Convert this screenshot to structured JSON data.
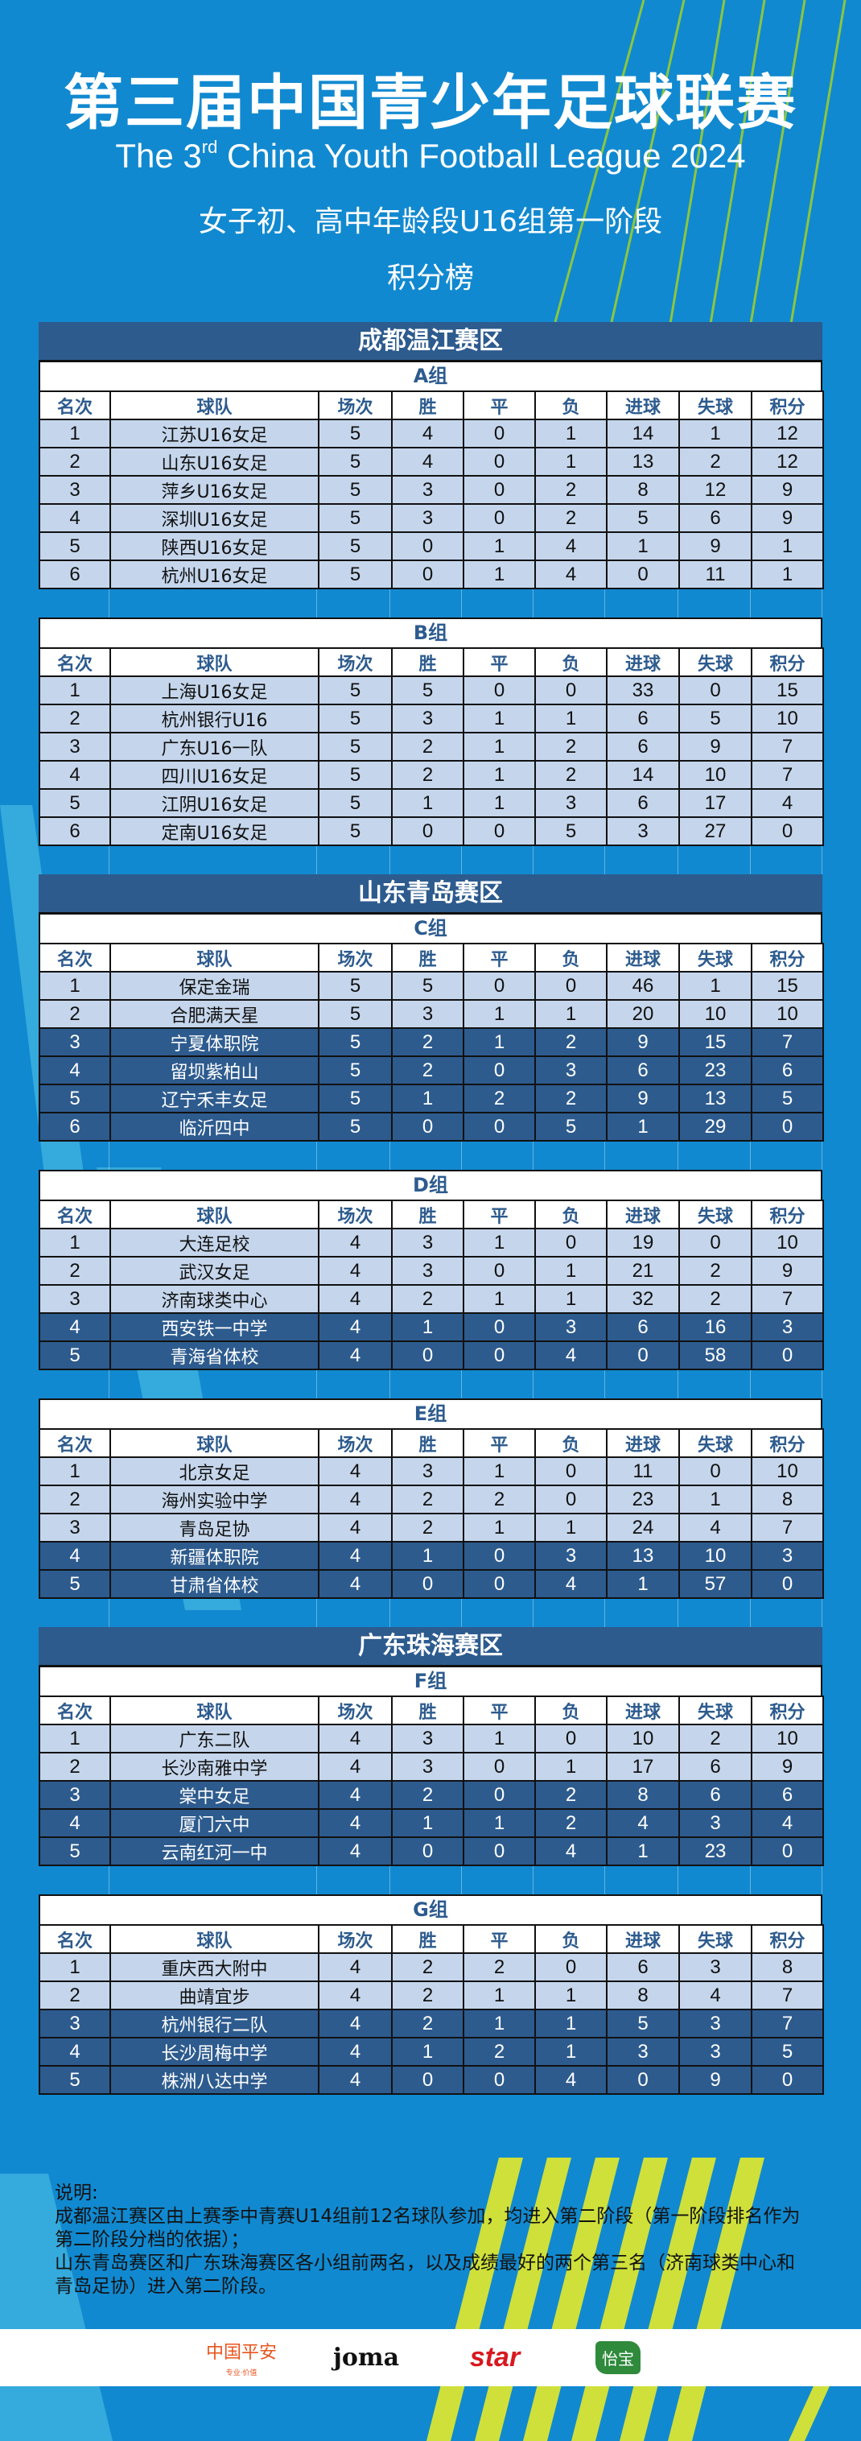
{
  "header": {
    "title": "第三届中国青少年足球联赛",
    "subtitle_en_prefix": "The 3",
    "subtitle_en_sup": "rd",
    "subtitle_en_suffix": " China Youth Football League 2024",
    "subtitle_cn": "女子初、高中年龄段U16组第一阶段",
    "board_title": "积分榜"
  },
  "columns": [
    "名次",
    "球队",
    "场次",
    "胜",
    "平",
    "负",
    "进球",
    "失球",
    "积分"
  ],
  "colors": {
    "background": "#1189d0",
    "region_header": "#2d5b8e",
    "qualified_row": "#c5d6ec",
    "other_row": "#2d5b8e",
    "stripe_accent": "#cfe03a"
  },
  "sections": [
    {
      "region": "成都温江赛区",
      "group": "A组",
      "rows": [
        {
          "cells": [
            "1",
            "江苏U16女足",
            "5",
            "4",
            "0",
            "1",
            "14",
            "1",
            "12"
          ],
          "qualified": true
        },
        {
          "cells": [
            "2",
            "山东U16女足",
            "5",
            "4",
            "0",
            "1",
            "13",
            "2",
            "12"
          ],
          "qualified": true
        },
        {
          "cells": [
            "3",
            "萍乡U16女足",
            "5",
            "3",
            "0",
            "2",
            "8",
            "12",
            "9"
          ],
          "qualified": true
        },
        {
          "cells": [
            "4",
            "深圳U16女足",
            "5",
            "3",
            "0",
            "2",
            "5",
            "6",
            "9"
          ],
          "qualified": true
        },
        {
          "cells": [
            "5",
            "陕西U16女足",
            "5",
            "0",
            "1",
            "4",
            "1",
            "9",
            "1"
          ],
          "qualified": true
        },
        {
          "cells": [
            "6",
            "杭州U16女足",
            "5",
            "0",
            "1",
            "4",
            "0",
            "11",
            "1"
          ],
          "qualified": true
        }
      ]
    },
    {
      "region": "",
      "group": "B组",
      "rows": [
        {
          "cells": [
            "1",
            "上海U16女足",
            "5",
            "5",
            "0",
            "0",
            "33",
            "0",
            "15"
          ],
          "qualified": true
        },
        {
          "cells": [
            "2",
            "杭州银行U16",
            "5",
            "3",
            "1",
            "1",
            "6",
            "5",
            "10"
          ],
          "qualified": true
        },
        {
          "cells": [
            "3",
            "广东U16一队",
            "5",
            "2",
            "1",
            "2",
            "6",
            "9",
            "7"
          ],
          "qualified": true
        },
        {
          "cells": [
            "4",
            "四川U16女足",
            "5",
            "2",
            "1",
            "2",
            "14",
            "10",
            "7"
          ],
          "qualified": true
        },
        {
          "cells": [
            "5",
            "江阴U16女足",
            "5",
            "1",
            "1",
            "3",
            "6",
            "17",
            "4"
          ],
          "qualified": true
        },
        {
          "cells": [
            "6",
            "定南U16女足",
            "5",
            "0",
            "0",
            "5",
            "3",
            "27",
            "0"
          ],
          "qualified": true
        }
      ]
    },
    {
      "region": "山东青岛赛区",
      "group": "C组",
      "rows": [
        {
          "cells": [
            "1",
            "保定金瑞",
            "5",
            "5",
            "0",
            "0",
            "46",
            "1",
            "15"
          ],
          "qualified": true
        },
        {
          "cells": [
            "2",
            "合肥满天星",
            "5",
            "3",
            "1",
            "1",
            "20",
            "10",
            "10"
          ],
          "qualified": true
        },
        {
          "cells": [
            "3",
            "宁夏体职院",
            "5",
            "2",
            "1",
            "2",
            "9",
            "15",
            "7"
          ],
          "qualified": false
        },
        {
          "cells": [
            "4",
            "留坝紫柏山",
            "5",
            "2",
            "0",
            "3",
            "6",
            "23",
            "6"
          ],
          "qualified": false
        },
        {
          "cells": [
            "5",
            "辽宁禾丰女足",
            "5",
            "1",
            "2",
            "2",
            "9",
            "13",
            "5"
          ],
          "qualified": false
        },
        {
          "cells": [
            "6",
            "临沂四中",
            "5",
            "0",
            "0",
            "5",
            "1",
            "29",
            "0"
          ],
          "qualified": false
        }
      ]
    },
    {
      "region": "",
      "group": "D组",
      "rows": [
        {
          "cells": [
            "1",
            "大连足校",
            "4",
            "3",
            "1",
            "0",
            "19",
            "0",
            "10"
          ],
          "qualified": true
        },
        {
          "cells": [
            "2",
            "武汉女足",
            "4",
            "3",
            "0",
            "1",
            "21",
            "2",
            "9"
          ],
          "qualified": true
        },
        {
          "cells": [
            "3",
            "济南球类中心",
            "4",
            "2",
            "1",
            "1",
            "32",
            "2",
            "7"
          ],
          "qualified": true
        },
        {
          "cells": [
            "4",
            "西安铁一中学",
            "4",
            "1",
            "0",
            "3",
            "6",
            "16",
            "3"
          ],
          "qualified": false
        },
        {
          "cells": [
            "5",
            "青海省体校",
            "4",
            "0",
            "0",
            "4",
            "0",
            "58",
            "0"
          ],
          "qualified": false
        }
      ]
    },
    {
      "region": "",
      "group": "E组",
      "rows": [
        {
          "cells": [
            "1",
            "北京女足",
            "4",
            "3",
            "1",
            "0",
            "11",
            "0",
            "10"
          ],
          "qualified": true
        },
        {
          "cells": [
            "2",
            "海州实验中学",
            "4",
            "2",
            "2",
            "0",
            "23",
            "1",
            "8"
          ],
          "qualified": true
        },
        {
          "cells": [
            "3",
            "青岛足协",
            "4",
            "2",
            "1",
            "1",
            "24",
            "4",
            "7"
          ],
          "qualified": true
        },
        {
          "cells": [
            "4",
            "新疆体职院",
            "4",
            "1",
            "0",
            "3",
            "13",
            "10",
            "3"
          ],
          "qualified": false
        },
        {
          "cells": [
            "5",
            "甘肃省体校",
            "4",
            "0",
            "0",
            "4",
            "1",
            "57",
            "0"
          ],
          "qualified": false
        }
      ]
    },
    {
      "region": "广东珠海赛区",
      "group": "F组",
      "rows": [
        {
          "cells": [
            "1",
            "广东二队",
            "4",
            "3",
            "1",
            "0",
            "10",
            "2",
            "10"
          ],
          "qualified": true
        },
        {
          "cells": [
            "2",
            "长沙南雅中学",
            "4",
            "3",
            "0",
            "1",
            "17",
            "6",
            "9"
          ],
          "qualified": true
        },
        {
          "cells": [
            "3",
            "棠中女足",
            "4",
            "2",
            "0",
            "2",
            "8",
            "6",
            "6"
          ],
          "qualified": false
        },
        {
          "cells": [
            "4",
            "厦门六中",
            "4",
            "1",
            "1",
            "2",
            "4",
            "3",
            "4"
          ],
          "qualified": false
        },
        {
          "cells": [
            "5",
            "云南红河一中",
            "4",
            "0",
            "0",
            "4",
            "1",
            "23",
            "0"
          ],
          "qualified": false
        }
      ]
    },
    {
      "region": "",
      "group": "G组",
      "rows": [
        {
          "cells": [
            "1",
            "重庆西大附中",
            "4",
            "2",
            "2",
            "0",
            "6",
            "3",
            "8"
          ],
          "qualified": true
        },
        {
          "cells": [
            "2",
            "曲靖宜步",
            "4",
            "2",
            "1",
            "1",
            "8",
            "4",
            "7"
          ],
          "qualified": true
        },
        {
          "cells": [
            "3",
            "杭州银行二队",
            "4",
            "2",
            "1",
            "1",
            "5",
            "3",
            "7"
          ],
          "qualified": false
        },
        {
          "cells": [
            "4",
            "长沙周梅中学",
            "4",
            "1",
            "2",
            "1",
            "3",
            "3",
            "5"
          ],
          "qualified": false
        },
        {
          "cells": [
            "5",
            "株洲八达中学",
            "4",
            "0",
            "0",
            "4",
            "0",
            "9",
            "0"
          ],
          "qualified": false
        }
      ]
    }
  ],
  "notes": {
    "label": "说明:",
    "lines": [
      "成都温江赛区由上赛季中青赛U14组前12名球队参加，均进入第二阶段（第一阶段排名作为第二阶段分档的依据）；",
      "山东青岛赛区和广东珠海赛区各小组前两名，以及成绩最好的两个第三名（济南球类中心和青岛足协）进入第二阶段。"
    ]
  },
  "sponsors": {
    "pingan": "中国平安",
    "pingan_tagline": "专业·价值",
    "joma": "joma",
    "star": "star",
    "yibao": "怡宝"
  }
}
